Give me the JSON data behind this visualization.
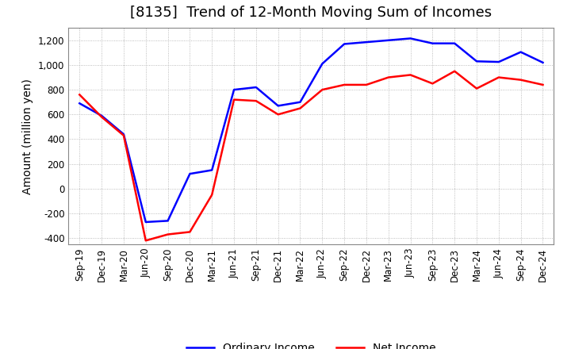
{
  "title": "[8135]  Trend of 12-Month Moving Sum of Incomes",
  "ylabel": "Amount (million yen)",
  "ylim": [
    -450,
    1300
  ],
  "yticks": [
    -400,
    -200,
    0,
    200,
    400,
    600,
    800,
    1000,
    1200
  ],
  "x_labels": [
    "Sep-19",
    "Dec-19",
    "Mar-20",
    "Jun-20",
    "Sep-20",
    "Dec-20",
    "Mar-21",
    "Jun-21",
    "Sep-21",
    "Dec-21",
    "Mar-22",
    "Jun-22",
    "Sep-22",
    "Dec-22",
    "Mar-23",
    "Jun-23",
    "Sep-23",
    "Dec-23",
    "Mar-24",
    "Jun-24",
    "Sep-24",
    "Dec-24"
  ],
  "ordinary_income": [
    690,
    590,
    440,
    -270,
    -260,
    120,
    150,
    800,
    820,
    670,
    700,
    1010,
    1170,
    1185,
    1200,
    1215,
    1175,
    1175,
    1030,
    1025,
    1105,
    1020
  ],
  "net_income": [
    760,
    580,
    430,
    -420,
    -370,
    -350,
    -50,
    720,
    710,
    600,
    650,
    800,
    840,
    840,
    900,
    920,
    850,
    950,
    810,
    900,
    880,
    840
  ],
  "ordinary_color": "#0000ff",
  "net_color": "#ff0000",
  "line_width": 1.8,
  "title_fontsize": 13,
  "tick_fontsize": 8.5,
  "label_fontsize": 10,
  "legend_fontsize": 10,
  "background_color": "#ffffff",
  "grid_color": "#aaaaaa"
}
